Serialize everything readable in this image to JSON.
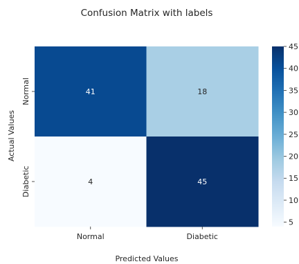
{
  "chart_data": {
    "type": "heatmap",
    "title": "Confusion Matrix with labels",
    "xlabel": "Predicted Values",
    "ylabel": "Actual Values",
    "x_categories": [
      "Normal",
      "Diabetic"
    ],
    "y_categories": [
      "Normal",
      "Diabetic"
    ],
    "values": [
      [
        41,
        18
      ],
      [
        4,
        45
      ]
    ],
    "colormap": "Blues",
    "colorbar": {
      "min": 4,
      "max": 45,
      "ticks": [
        "5",
        "10",
        "15",
        "20",
        "25",
        "30",
        "35",
        "40",
        "45"
      ]
    },
    "annotation_colors": {
      "dark_cell_text": "#ffffff",
      "light_cell_text": "#262626"
    },
    "grid": false
  }
}
